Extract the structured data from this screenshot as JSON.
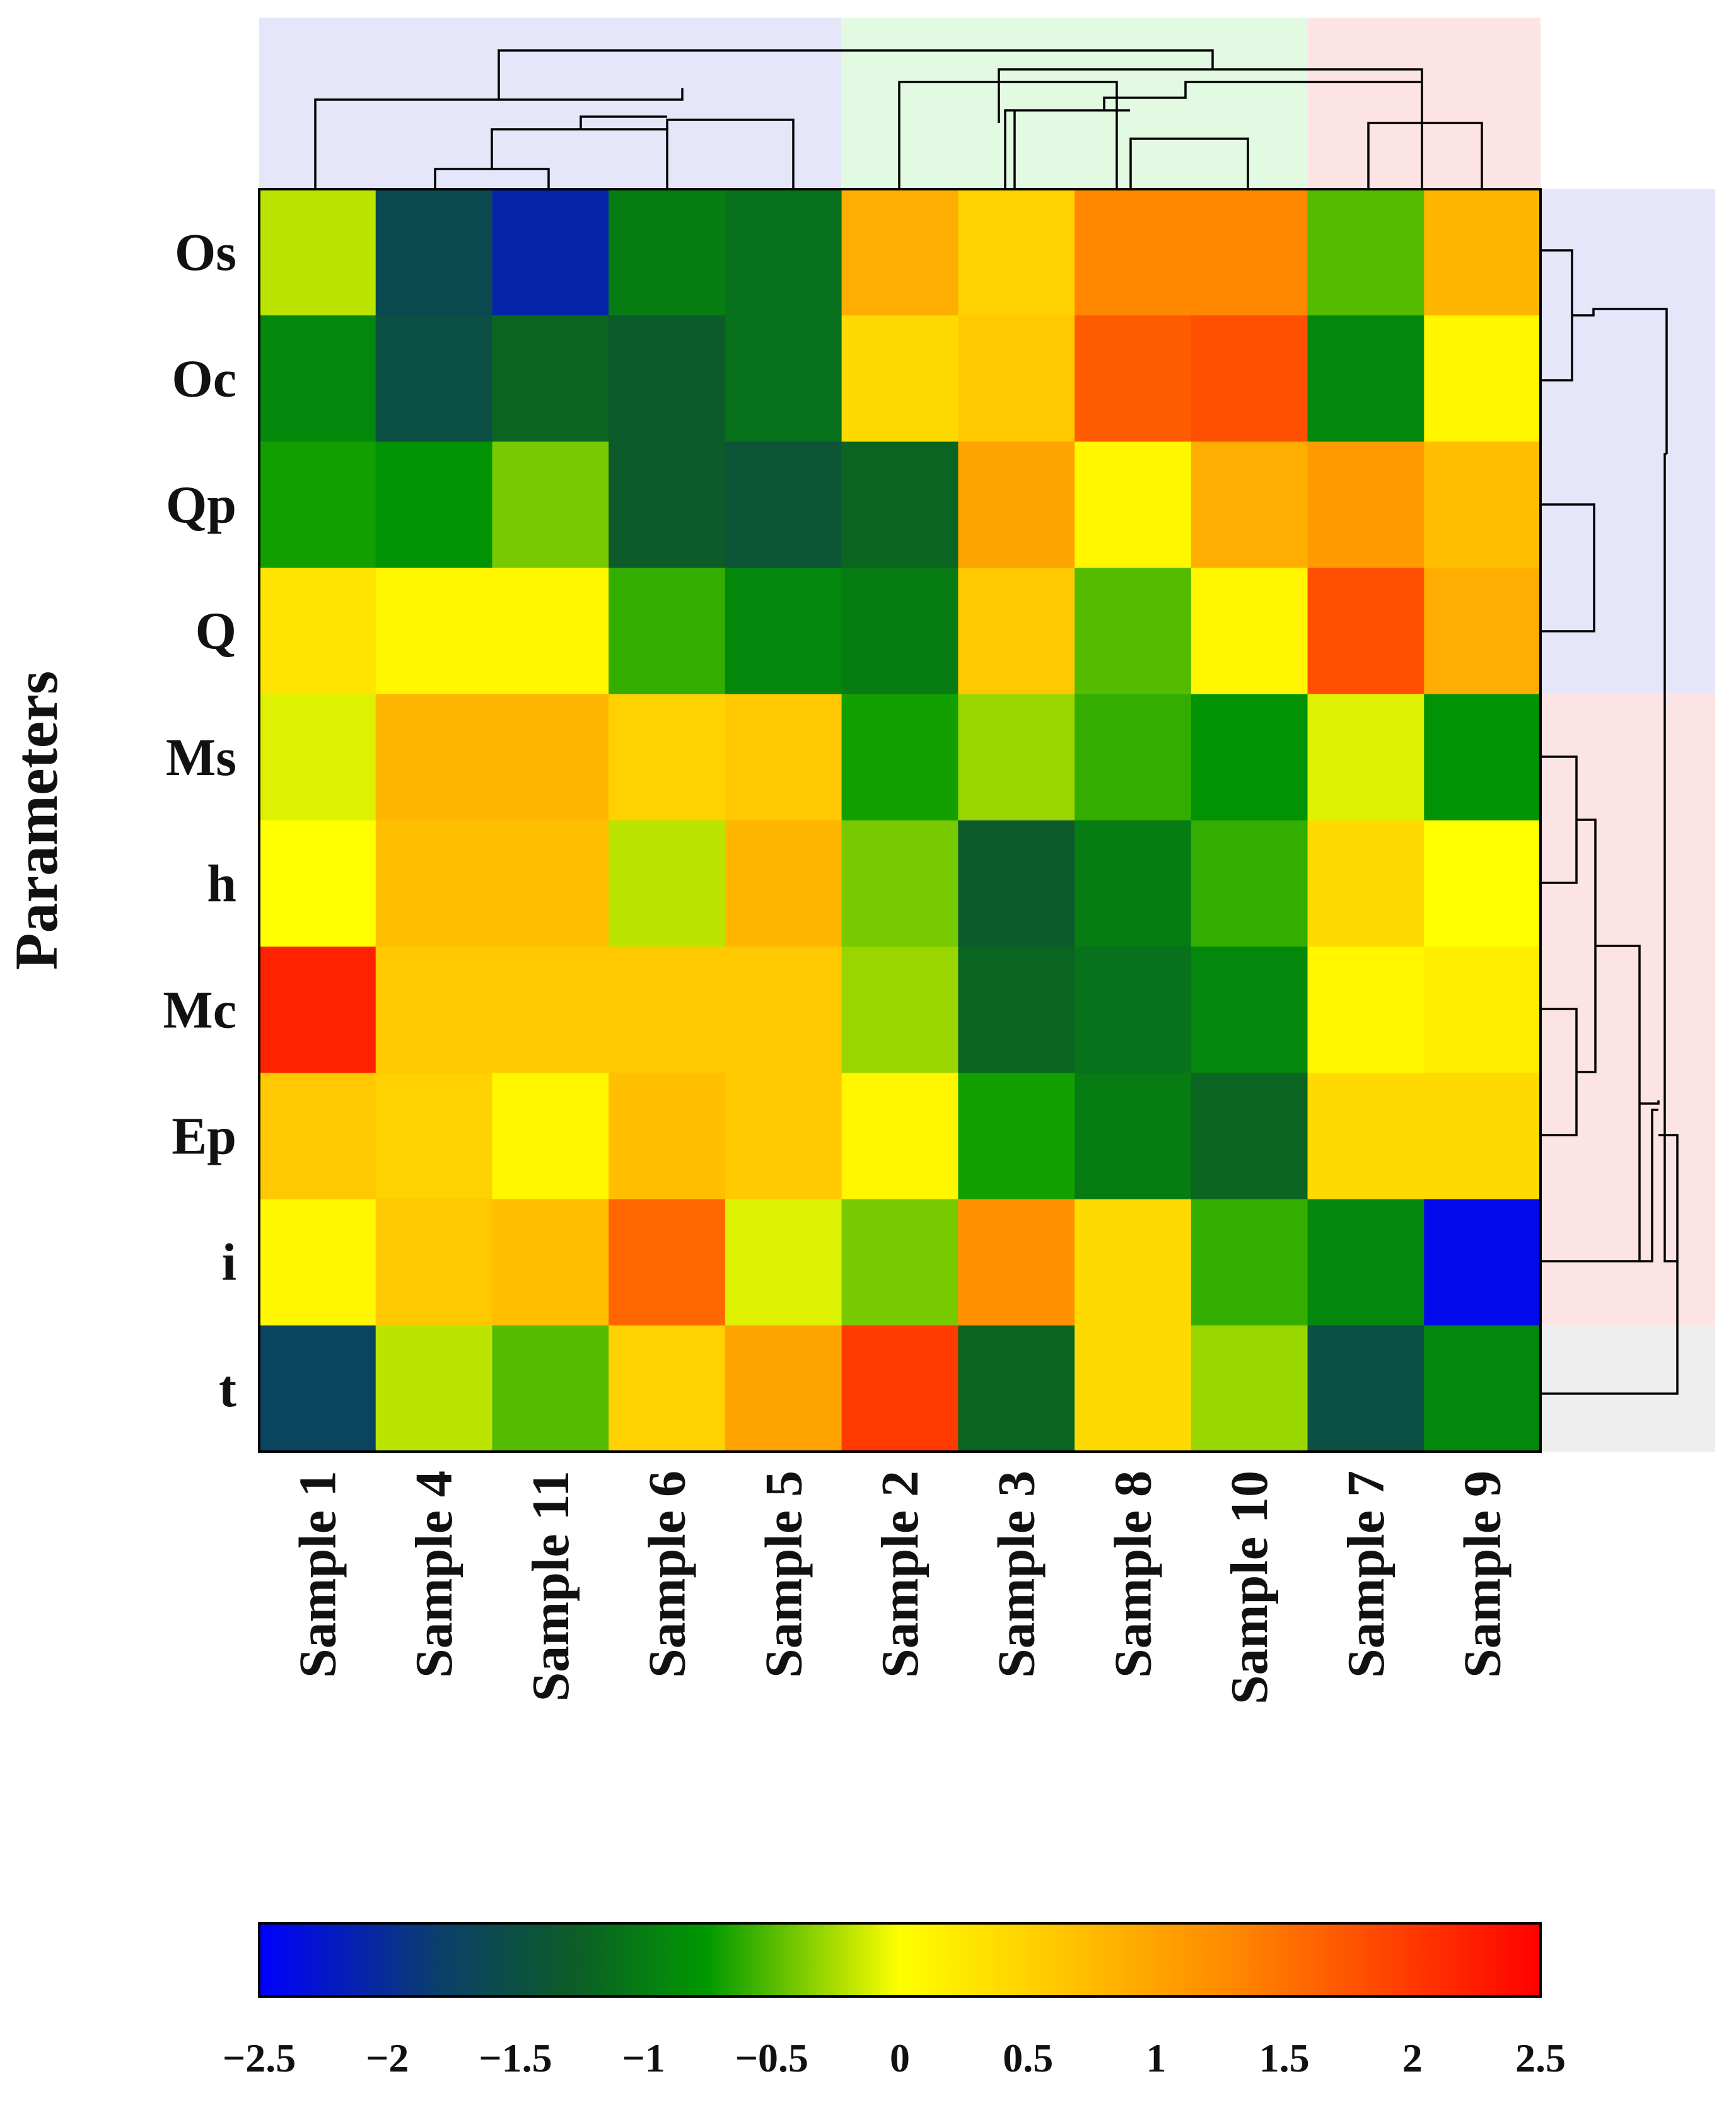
{
  "chart_data": {
    "type": "heatmap",
    "title": "",
    "ylabel": "Parameters",
    "xlabel": "",
    "rows": [
      "Os",
      "Oc",
      "Qp",
      "Q",
      "Ms",
      "h",
      "Mc",
      "Ep",
      "i",
      "t"
    ],
    "columns": [
      "Sample 1",
      "Sample 4",
      "Sample 11",
      "Sample 6",
      "Sample 5",
      "Sample 2",
      "Sample 3",
      "Sample 8",
      "Sample 10",
      "Sample 7",
      "Sample 9"
    ],
    "values": [
      [
        -0.2,
        -1.6,
        -2.1,
        -1.0,
        -1.1,
        0.9,
        0.5,
        1.3,
        1.3,
        -0.5,
        0.8
      ],
      [
        -0.9,
        -1.5,
        -1.2,
        -1.3,
        -1.1,
        0.4,
        0.6,
        1.7,
        1.8,
        -0.9,
        0.1
      ],
      [
        -0.7,
        -0.8,
        -0.4,
        -1.3,
        -1.4,
        -1.2,
        1.0,
        0.1,
        0.9,
        1.1,
        0.7
      ],
      [
        0.3,
        0.1,
        0.1,
        -0.6,
        -0.9,
        -1.0,
        0.6,
        -0.5,
        0.1,
        1.8,
        0.9
      ],
      [
        -0.1,
        0.8,
        0.8,
        0.5,
        0.6,
        -0.7,
        -0.3,
        -0.6,
        -0.8,
        -0.1,
        -0.8
      ],
      [
        0.0,
        0.7,
        0.7,
        -0.2,
        0.8,
        -0.4,
        -1.3,
        -1.0,
        -0.6,
        0.4,
        0.0
      ],
      [
        2.2,
        0.6,
        0.6,
        0.6,
        0.6,
        -0.3,
        -1.2,
        -1.1,
        -0.9,
        0.1,
        0.2
      ],
      [
        0.6,
        0.5,
        0.1,
        0.7,
        0.6,
        0.1,
        -0.7,
        -1.0,
        -1.2,
        0.4,
        0.4
      ],
      [
        0.1,
        0.6,
        0.7,
        1.6,
        -0.1,
        -0.4,
        1.2,
        0.4,
        -0.6,
        -0.9,
        -2.4
      ],
      [
        -1.7,
        -0.2,
        -0.5,
        0.5,
        1.0,
        2.0,
        -1.2,
        0.4,
        -0.3,
        -1.5,
        -0.9
      ]
    ],
    "colorbar": {
      "min": -2.5,
      "max": 2.5,
      "ticks": [
        "−2.5",
        "−2",
        "−1.5",
        "−1",
        "−0.5",
        "0",
        "0.5",
        "1",
        "1.5",
        "2",
        "2.5"
      ],
      "colors": [
        "#0000ff",
        "#0b3f6b",
        "#0d5a2a",
        "#009900",
        "#ffff00",
        "#ff8800",
        "#ff0000"
      ]
    },
    "column_clusters": [
      {
        "members": [
          "Sample 1",
          "Sample 4",
          "Sample 11",
          "Sample 6",
          "Sample 5"
        ],
        "color": "#e6e6fa"
      },
      {
        "members": [
          "Sample 2",
          "Sample 3",
          "Sample 8",
          "Sample 10"
        ],
        "color": "#e2fae2"
      },
      {
        "members": [
          "Sample 7",
          "Sample 9"
        ],
        "color": "#fde4e4"
      }
    ],
    "row_clusters": [
      {
        "members": [
          "Os",
          "Oc",
          "Qp",
          "Q"
        ],
        "color": "#e6e6fa"
      },
      {
        "members": [
          "Ms",
          "h",
          "Mc",
          "Ep",
          "i"
        ],
        "color": "#fde4e4"
      },
      {
        "members": [
          "t"
        ],
        "color": "#eeeeee"
      }
    ]
  }
}
